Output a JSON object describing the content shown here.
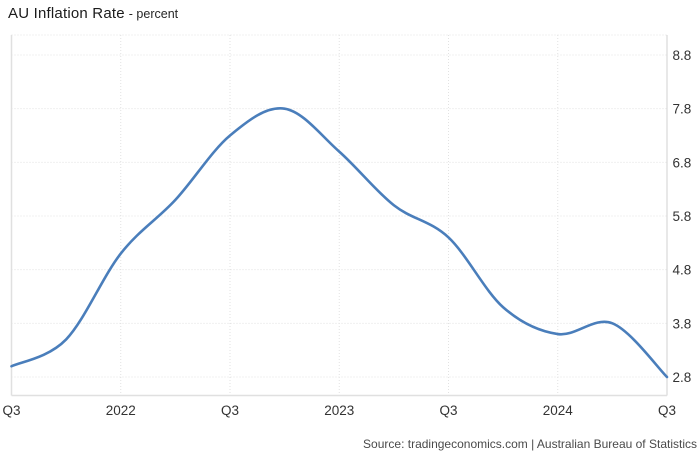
{
  "header": {
    "title": "AU Inflation Rate",
    "subtitle": "- percent"
  },
  "footer": {
    "source": "Source: tradingeconomics.com | Australian Bureau of Statistics"
  },
  "chart_data": {
    "type": "line",
    "title": "AU Inflation Rate",
    "ylabel": "percent",
    "xlabel": "",
    "x": [
      "2021-Q3",
      "2021-Q4",
      "2022-Q1",
      "2022-Q2",
      "2022-Q3",
      "2022-Q4",
      "2023-Q1",
      "2023-Q2",
      "2023-Q3",
      "2023-Q4",
      "2024-Q1",
      "2024-Q2",
      "2024-Q3"
    ],
    "values": [
      3.0,
      3.5,
      5.1,
      6.1,
      7.3,
      7.8,
      7.0,
      6.0,
      5.4,
      4.1,
      3.6,
      3.8,
      2.8
    ],
    "ylim": [
      2.8,
      8.8
    ],
    "y_ticks": [
      "8.8",
      "7.8",
      "6.8",
      "5.8",
      "4.8",
      "3.8",
      "2.8"
    ],
    "x_ticks": [
      {
        "index": 0,
        "label": "Q3"
      },
      {
        "index": 2,
        "label": "2022"
      },
      {
        "index": 4,
        "label": "Q3"
      },
      {
        "index": 6,
        "label": "2023"
      },
      {
        "index": 8,
        "label": "Q3"
      },
      {
        "index": 10,
        "label": "2024"
      },
      {
        "index": 12,
        "label": "Q3"
      }
    ],
    "grid": true,
    "legend": "none",
    "colors": {
      "line": "#4a7ebb",
      "grid": "#e2e2e2",
      "border": "#e0e0e0",
      "tick_label": "#333333"
    }
  }
}
